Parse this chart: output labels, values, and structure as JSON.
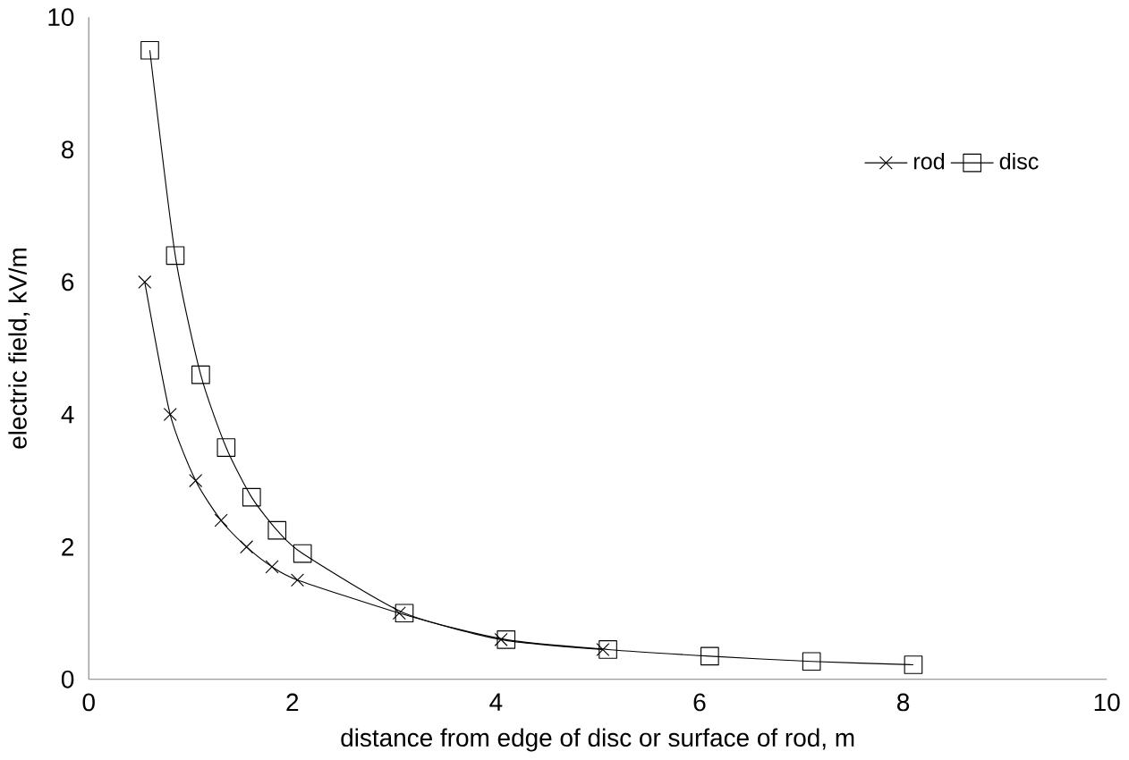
{
  "chart_data": {
    "type": "line",
    "xlabel": "distance from edge of disc or surface of rod, m",
    "ylabel": "electric field, kV/m",
    "xlim": [
      0,
      10
    ],
    "ylim": [
      0,
      10
    ],
    "xticks": [
      0,
      2,
      4,
      6,
      8,
      10
    ],
    "yticks": [
      0,
      2,
      4,
      6,
      8,
      10
    ],
    "grid": false,
    "legend": "top right",
    "series": [
      {
        "name": "rod",
        "color": "#000000",
        "marker": "cross",
        "x": [
          0.55,
          0.8,
          1.05,
          1.3,
          1.55,
          1.8,
          2.05,
          3.05,
          4.05,
          5.05
        ],
        "values": [
          6.0,
          4.0,
          3.0,
          2.4,
          2.0,
          1.7,
          1.5,
          1.0,
          0.6,
          0.45
        ]
      },
      {
        "name": "disc",
        "color": "#000000",
        "marker": "square",
        "x": [
          0.6,
          0.85,
          1.1,
          1.35,
          1.6,
          1.85,
          2.1,
          3.1,
          4.1,
          5.1,
          6.1,
          7.1,
          8.1
        ],
        "values": [
          9.5,
          6.4,
          4.6,
          3.5,
          2.75,
          2.25,
          1.9,
          1.0,
          0.6,
          0.45,
          0.35,
          0.27,
          0.22
        ]
      }
    ]
  }
}
